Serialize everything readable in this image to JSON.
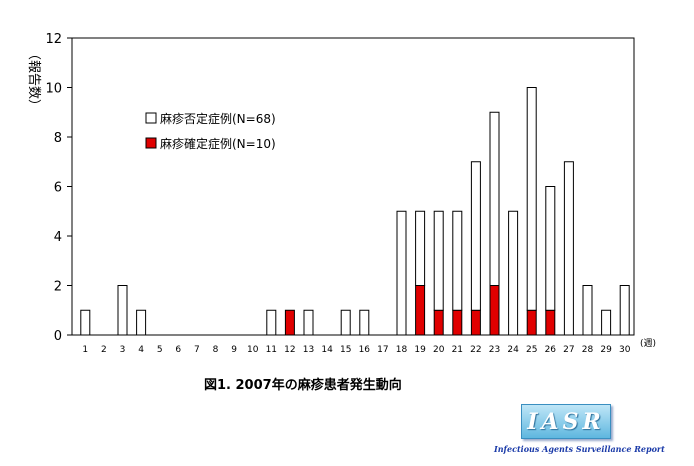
{
  "chart_data": {
    "type": "bar",
    "stacked": true,
    "categories": [
      "1",
      "2",
      "3",
      "4",
      "5",
      "6",
      "7",
      "8",
      "9",
      "10",
      "11",
      "12",
      "13",
      "14",
      "15",
      "16",
      "17",
      "18",
      "19",
      "20",
      "21",
      "22",
      "23",
      "24",
      "25",
      "26",
      "27",
      "28",
      "29",
      "30"
    ],
    "series": [
      {
        "name": "麻疹確定症例(N=10)",
        "color": "#e00000",
        "values": [
          0,
          0,
          0,
          0,
          0,
          0,
          0,
          0,
          0,
          0,
          0,
          1,
          0,
          0,
          0,
          0,
          0,
          0,
          2,
          1,
          1,
          1,
          2,
          0,
          1,
          1,
          0,
          0,
          0,
          0
        ]
      },
      {
        "name": "麻疹否定症例(N=68)",
        "color": "#ffffff",
        "values": [
          1,
          0,
          2,
          1,
          0,
          0,
          0,
          0,
          0,
          0,
          1,
          0,
          1,
          0,
          1,
          1,
          0,
          5,
          3,
          4,
          4,
          6,
          7,
          5,
          9,
          5,
          7,
          2,
          1,
          2
        ]
      }
    ],
    "y_ticks": [
      "0",
      "2",
      "4",
      "6",
      "8",
      "10",
      "12"
    ],
    "ylim": [
      0,
      12
    ],
    "ylabel": "（報告数）",
    "xunit": "(週)",
    "title": "図1. 2007年の麻疹患者発生動向",
    "legend_position": "top-left",
    "grid": false
  },
  "logo": {
    "text": "IASR",
    "subtitle": "Infectious Agents Surveillance Report"
  }
}
